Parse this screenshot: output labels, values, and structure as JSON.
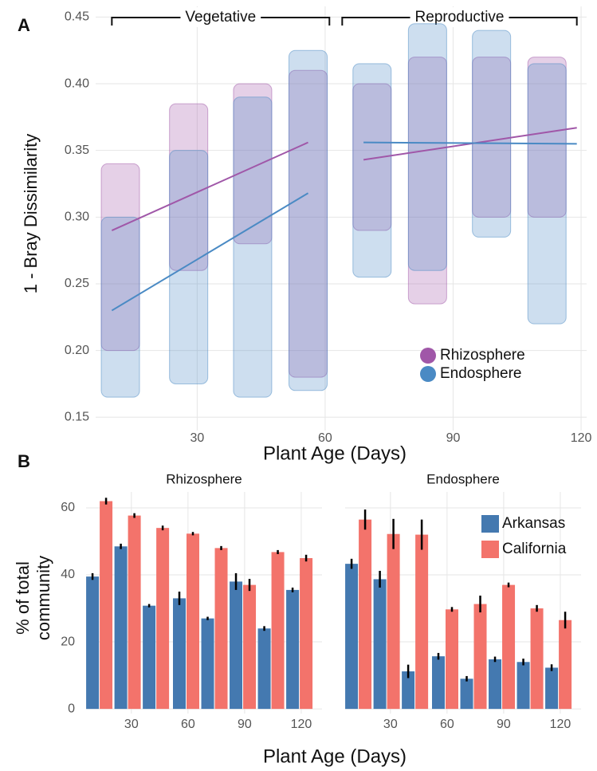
{
  "chart_data": [
    {
      "type": "scatter",
      "panel": "A",
      "ylabel": "1 - Bray Dissimilarity",
      "xlabel": "Plant Age (Days)",
      "xlim": [
        6.2,
        121.3
      ],
      "xticks": [
        30,
        60,
        90,
        120
      ],
      "ylim": [
        0.14,
        0.458
      ],
      "yticks": [
        0.15,
        {
          "value": 0.2,
          "label": "0.20"
        },
        0.25,
        {
          "value": 0.3,
          "label": "0.30"
        },
        0.35,
        {
          "value": 0.4,
          "label": "0.40"
        },
        0.45
      ],
      "grid": true,
      "legend": "bottom-right",
      "phases": [
        {
          "label": "Vegetative",
          "x": [
            10,
            61
          ]
        },
        {
          "label": "Reproductive",
          "x": [
            64,
            119
          ]
        }
      ],
      "x": [
        12,
        28,
        43,
        56,
        71,
        84,
        99,
        112
      ],
      "series": [
        {
          "name": "Rhizosphere",
          "color": "#a057a8",
          "low": [
            0.2,
            0.26,
            0.28,
            0.18,
            0.29,
            0.235,
            0.3,
            0.3
          ],
          "high": [
            0.34,
            0.385,
            0.4,
            0.41,
            0.4,
            0.42,
            0.42,
            0.42
          ],
          "trends": [
            {
              "x": [
                10,
                56
              ],
              "y": [
                0.29,
                0.356
              ]
            },
            {
              "x": [
                69,
                119
              ],
              "y": [
                0.343,
                0.367
              ]
            }
          ]
        },
        {
          "name": "Endosphere",
          "color": "#4a8ac4",
          "low": [
            0.165,
            0.175,
            0.165,
            0.17,
            0.255,
            0.26,
            0.285,
            0.22
          ],
          "high": [
            0.3,
            0.35,
            0.39,
            0.425,
            0.415,
            0.445,
            0.44,
            0.415
          ],
          "trends": [
            {
              "x": [
                10,
                56
              ],
              "y": [
                0.23,
                0.318
              ]
            },
            {
              "x": [
                69,
                119
              ],
              "y": [
                0.356,
                0.355
              ]
            }
          ]
        }
      ]
    },
    {
      "type": "bar",
      "panel": "B",
      "ylabel_lines": [
        "% of total",
        "community"
      ],
      "xlabel": "Plant Age (Days)",
      "xlim": [
        6,
        131
      ],
      "xticks": [
        30,
        60,
        90,
        120
      ],
      "ylim": [
        -1.4,
        67.6
      ],
      "yticks": [
        0,
        20,
        40,
        60
      ],
      "grid": true,
      "legend": "top-right",
      "x": [
        13,
        28,
        43,
        59,
        74,
        89,
        104,
        119
      ],
      "series": [
        {
          "name": "Arkansas",
          "color": "#4479b0"
        },
        {
          "name": "California",
          "color": "#f3736b"
        }
      ],
      "facets": [
        {
          "title": "Rhizosphere",
          "values": [
            [
              39.5,
              48.5,
              30.8,
              33,
              27,
              38,
              24,
              35.5
            ],
            [
              62,
              57.7,
              54,
              52.3,
              48,
              37,
              46.8,
              45
            ]
          ],
          "errors": [
            [
              1,
              0.8,
              0.5,
              2,
              0.5,
              2.5,
              0.7,
              0.7
            ],
            [
              1,
              0.7,
              0.7,
              0.5,
              0.6,
              1.8,
              0.6,
              1
            ]
          ]
        },
        {
          "title": "Endosphere",
          "values": [
            [
              43.3,
              38.7,
              11.2,
              15.7,
              9,
              14.8,
              14,
              12.3
            ],
            [
              56.5,
              52.2,
              52,
              29.7,
              31.3,
              37,
              30,
              26.5
            ]
          ],
          "errors": [
            [
              1.5,
              2.5,
              2,
              1,
              0.8,
              0.8,
              1,
              1
            ],
            [
              3,
              4.5,
              4.5,
              0.7,
              2.5,
              0.7,
              1,
              2.5
            ]
          ]
        }
      ]
    }
  ]
}
